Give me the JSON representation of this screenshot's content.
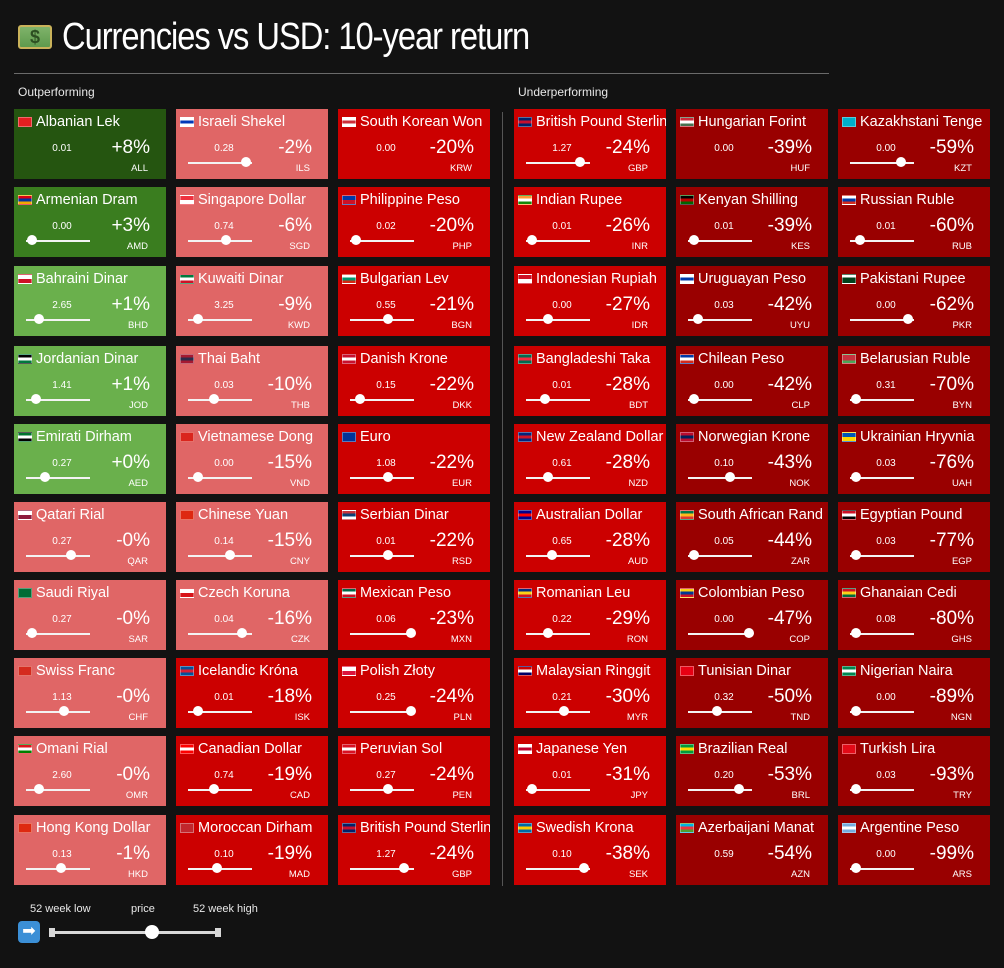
{
  "header": {
    "title": "Currencies vs USD: 10-year return",
    "icon": "money-banknote-icon",
    "icon_symbol": "$"
  },
  "sections": {
    "outperforming": "Outperforming",
    "underperforming": "Underperforming"
  },
  "colors": {
    "dark_green": "#255510",
    "mid_green": "#3a7d1f",
    "light_green": "#6ab04c",
    "salmon": "#e06666",
    "red": "#cc0000",
    "dark_red": "#990000"
  },
  "legend": {
    "low_label": "52 week low",
    "price_label": "price",
    "high_label": "52 week high",
    "icon": "right-arrow-icon",
    "icon_symbol": "➡",
    "position": 0.6
  },
  "currencies": [
    {
      "name": "Albanian Lek",
      "price": "0.01",
      "return": "+8%",
      "code": "ALL",
      "pos": -1,
      "color": "#255510",
      "flag": [
        "#e41e20",
        "#e41e20"
      ]
    },
    {
      "name": "Armenian Dram",
      "price": "0.00",
      "return": "+3%",
      "code": "AMD",
      "pos": 0.1,
      "color": "#3a7d1f",
      "flag": [
        "#d90012",
        "#0033a0",
        "#f2a800"
      ]
    },
    {
      "name": "Bahraini Dinar",
      "price": "2.65",
      "return": "+1%",
      "code": "BHD",
      "pos": 0.2,
      "color": "#6ab04c",
      "flag": [
        "#ffffff",
        "#ce1126"
      ]
    },
    {
      "name": "Jordanian Dinar",
      "price": "1.41",
      "return": "+1%",
      "code": "JOD",
      "pos": 0.15,
      "color": "#6ab04c",
      "flag": [
        "#000000",
        "#ffffff",
        "#007a3d"
      ]
    },
    {
      "name": "Emirati Dirham",
      "price": "0.27",
      "return": "+0%",
      "code": "AED",
      "pos": 0.3,
      "color": "#6ab04c",
      "flag": [
        "#00732f",
        "#ffffff",
        "#000000"
      ]
    },
    {
      "name": "Qatari Rial",
      "price": "0.27",
      "return": "-0%",
      "code": "QAR",
      "pos": 0.7,
      "color": "#e06666",
      "flag": [
        "#ffffff",
        "#8d1b3d"
      ]
    },
    {
      "name": "Saudi Riyal",
      "price": "0.27",
      "return": "-0%",
      "code": "SAR",
      "pos": 0.1,
      "color": "#e06666",
      "flag": [
        "#006c35",
        "#006c35"
      ]
    },
    {
      "name": "Swiss Franc",
      "price": "1.13",
      "return": "-0%",
      "code": "CHF",
      "pos": 0.6,
      "color": "#e06666",
      "flag": [
        "#d52b1e",
        "#d52b1e"
      ]
    },
    {
      "name": "Omani Rial",
      "price": "2.60",
      "return": "-0%",
      "code": "OMR",
      "pos": 0.2,
      "color": "#e06666",
      "flag": [
        "#db161b",
        "#ffffff",
        "#008000"
      ]
    },
    {
      "name": "Hong Kong Dollar",
      "price": "0.13",
      "return": "-1%",
      "code": "HKD",
      "pos": 0.55,
      "color": "#e06666",
      "flag": [
        "#de2910",
        "#de2910"
      ]
    },
    {
      "name": "Israeli Shekel",
      "price": "0.28",
      "return": "-2%",
      "code": "ILS",
      "pos": 0.9,
      "color": "#e06666",
      "flag": [
        "#ffffff",
        "#0038b8",
        "#ffffff"
      ]
    },
    {
      "name": "Singapore Dollar",
      "price": "0.74",
      "return": "-6%",
      "code": "SGD",
      "pos": 0.6,
      "color": "#e06666",
      "flag": [
        "#ef3340",
        "#ffffff"
      ]
    },
    {
      "name": "Kuwaiti Dinar",
      "price": "3.25",
      "return": "-9%",
      "code": "KWD",
      "pos": 0.15,
      "color": "#e06666",
      "flag": [
        "#007a3d",
        "#ffffff",
        "#ce1126"
      ]
    },
    {
      "name": "Thai Baht",
      "price": "0.03",
      "return": "-10%",
      "code": "THB",
      "pos": 0.4,
      "color": "#e06666",
      "flag": [
        "#a51931",
        "#2d2a4a",
        "#a51931"
      ]
    },
    {
      "name": "Vietnamese Dong",
      "price": "0.00",
      "return": "-15%",
      "code": "VND",
      "pos": 0.15,
      "color": "#e06666",
      "flag": [
        "#da251d",
        "#da251d"
      ]
    },
    {
      "name": "Chinese Yuan",
      "price": "0.14",
      "return": "-15%",
      "code": "CNY",
      "pos": 0.65,
      "color": "#e06666",
      "flag": [
        "#de2910",
        "#de2910"
      ]
    },
    {
      "name": "Czech Koruna",
      "price": "0.04",
      "return": "-16%",
      "code": "CZK",
      "pos": 0.85,
      "color": "#e06666",
      "flag": [
        "#ffffff",
        "#d7141a"
      ]
    },
    {
      "name": "Icelandic Króna",
      "price": "0.01",
      "return": "-18%",
      "code": "ISK",
      "pos": 0.15,
      "color": "#cc0000",
      "flag": [
        "#02529c",
        "#dc1e35",
        "#02529c"
      ]
    },
    {
      "name": "Canadian Dollar",
      "price": "0.74",
      "return": "-19%",
      "code": "CAD",
      "pos": 0.4,
      "color": "#cc0000",
      "flag": [
        "#ff0000",
        "#ffffff",
        "#ff0000"
      ]
    },
    {
      "name": "Moroccan Dirham",
      "price": "0.10",
      "return": "-19%",
      "code": "MAD",
      "pos": 0.45,
      "color": "#cc0000",
      "flag": [
        "#c1272d",
        "#c1272d"
      ]
    },
    {
      "name": "South Korean Won",
      "price": "0.00",
      "return": "-20%",
      "code": "KRW",
      "pos": -1,
      "color": "#cc0000",
      "flag": [
        "#ffffff",
        "#cd2e3a",
        "#ffffff"
      ]
    },
    {
      "name": "Philippine Peso",
      "price": "0.02",
      "return": "-20%",
      "code": "PHP",
      "pos": 0.1,
      "color": "#cc0000",
      "flag": [
        "#0038a8",
        "#ce1126"
      ]
    },
    {
      "name": "Bulgarian Lev",
      "price": "0.55",
      "return": "-21%",
      "code": "BGN",
      "pos": 0.6,
      "color": "#cc0000",
      "flag": [
        "#ffffff",
        "#00966e",
        "#d62612"
      ]
    },
    {
      "name": "Danish Krone",
      "price": "0.15",
      "return": "-22%",
      "code": "DKK",
      "pos": 0.15,
      "color": "#cc0000",
      "flag": [
        "#c8102e",
        "#ffffff",
        "#c8102e"
      ]
    },
    {
      "name": "Euro",
      "price": "1.08",
      "return": "-22%",
      "code": "EUR",
      "pos": 0.6,
      "color": "#cc0000",
      "flag": [
        "#003399",
        "#003399"
      ]
    },
    {
      "name": "Serbian Dinar",
      "price": "0.01",
      "return": "-22%",
      "code": "RSD",
      "pos": 0.6,
      "color": "#cc0000",
      "flag": [
        "#c6363c",
        "#0c4076",
        "#ffffff"
      ]
    },
    {
      "name": "Mexican Peso",
      "price": "0.06",
      "return": "-23%",
      "code": "MXN",
      "pos": 0.95,
      "color": "#cc0000",
      "flag": [
        "#006847",
        "#ffffff",
        "#ce1126"
      ]
    },
    {
      "name": "Polish Złoty",
      "price": "0.25",
      "return": "-24%",
      "code": "PLN",
      "pos": 0.95,
      "color": "#cc0000",
      "flag": [
        "#ffffff",
        "#dc143c"
      ]
    },
    {
      "name": "Peruvian Sol",
      "price": "0.27",
      "return": "-24%",
      "code": "PEN",
      "pos": 0.6,
      "color": "#cc0000",
      "flag": [
        "#d91023",
        "#ffffff",
        "#d91023"
      ]
    },
    {
      "name": "British Pound Sterling",
      "price": "1.27",
      "return": "-24%",
      "code": "GBP",
      "pos": 0.85,
      "color": "#cc0000",
      "flag": [
        "#012169",
        "#c8102e",
        "#012169"
      ]
    },
    {
      "name": "British Pound Sterling",
      "price": "1.27",
      "return": "-24%",
      "code": "GBP",
      "pos": 0.85,
      "color": "#cc0000",
      "flag": [
        "#012169",
        "#c8102e",
        "#012169"
      ]
    },
    {
      "name": "Indian Rupee",
      "price": "0.01",
      "return": "-26%",
      "code": "INR",
      "pos": 0.1,
      "color": "#cc0000",
      "flag": [
        "#ff9933",
        "#ffffff",
        "#138808"
      ]
    },
    {
      "name": "Indonesian Rupiah",
      "price": "0.00",
      "return": "-27%",
      "code": "IDR",
      "pos": 0.35,
      "color": "#cc0000",
      "flag": [
        "#ce1126",
        "#ffffff"
      ]
    },
    {
      "name": "Bangladeshi Taka",
      "price": "0.01",
      "return": "-28%",
      "code": "BDT",
      "pos": 0.3,
      "color": "#cc0000",
      "flag": [
        "#006a4e",
        "#f42a41",
        "#006a4e"
      ]
    },
    {
      "name": "New Zealand Dollar",
      "price": "0.61",
      "return": "-28%",
      "code": "NZD",
      "pos": 0.35,
      "color": "#cc0000",
      "flag": [
        "#00247d",
        "#cc142b",
        "#00247d"
      ]
    },
    {
      "name": "Australian Dollar",
      "price": "0.65",
      "return": "-28%",
      "code": "AUD",
      "pos": 0.4,
      "color": "#cc0000",
      "flag": [
        "#00008b",
        "#ff0000",
        "#00008b"
      ]
    },
    {
      "name": "Romanian Leu",
      "price": "0.22",
      "return": "-29%",
      "code": "RON",
      "pos": 0.35,
      "color": "#cc0000",
      "flag": [
        "#002b7f",
        "#fcd116",
        "#ce1126"
      ]
    },
    {
      "name": "Malaysian Ringgit",
      "price": "0.21",
      "return": "-30%",
      "code": "MYR",
      "pos": 0.6,
      "color": "#cc0000",
      "flag": [
        "#cc0001",
        "#ffffff",
        "#010066"
      ]
    },
    {
      "name": "Japanese Yen",
      "price": "0.01",
      "return": "-31%",
      "code": "JPY",
      "pos": 0.1,
      "color": "#cc0000",
      "flag": [
        "#ffffff",
        "#bc002d",
        "#ffffff"
      ]
    },
    {
      "name": "Swedish Krona",
      "price": "0.10",
      "return": "-38%",
      "code": "SEK",
      "pos": 0.9,
      "color": "#cc0000",
      "flag": [
        "#006aa7",
        "#fecc00",
        "#006aa7"
      ]
    },
    {
      "name": "Hungarian Forint",
      "price": "0.00",
      "return": "-39%",
      "code": "HUF",
      "pos": -1,
      "color": "#990000",
      "flag": [
        "#ce2939",
        "#ffffff",
        "#477050"
      ]
    },
    {
      "name": "Kenyan Shilling",
      "price": "0.01",
      "return": "-39%",
      "code": "KES",
      "pos": 0.1,
      "color": "#990000",
      "flag": [
        "#000000",
        "#bb0000",
        "#006600"
      ]
    },
    {
      "name": "Uruguayan Peso",
      "price": "0.03",
      "return": "-42%",
      "code": "UYU",
      "pos": 0.15,
      "color": "#990000",
      "flag": [
        "#ffffff",
        "#0038a8",
        "#ffffff"
      ]
    },
    {
      "name": "Chilean Peso",
      "price": "0.00",
      "return": "-42%",
      "code": "CLP",
      "pos": 0.1,
      "color": "#990000",
      "flag": [
        "#0039a6",
        "#ffffff",
        "#d52b1e"
      ]
    },
    {
      "name": "Norwegian Krone",
      "price": "0.10",
      "return": "-43%",
      "code": "NOK",
      "pos": 0.65,
      "color": "#990000",
      "flag": [
        "#ba0c2f",
        "#00205b",
        "#ba0c2f"
      ]
    },
    {
      "name": "South African Rand",
      "price": "0.05",
      "return": "-44%",
      "code": "ZAR",
      "pos": 0.1,
      "color": "#990000",
      "flag": [
        "#007749",
        "#ffb81c",
        "#de3831"
      ]
    },
    {
      "name": "Colombian Peso",
      "price": "0.00",
      "return": "-47%",
      "code": "COP",
      "pos": 0.95,
      "color": "#990000",
      "flag": [
        "#fcd116",
        "#003893",
        "#ce1126"
      ]
    },
    {
      "name": "Tunisian Dinar",
      "price": "0.32",
      "return": "-50%",
      "code": "TND",
      "pos": 0.45,
      "color": "#990000",
      "flag": [
        "#e70013",
        "#e70013"
      ]
    },
    {
      "name": "Brazilian Real",
      "price": "0.20",
      "return": "-53%",
      "code": "BRL",
      "pos": 0.8,
      "color": "#990000",
      "flag": [
        "#009c3b",
        "#ffdf00",
        "#009c3b"
      ]
    },
    {
      "name": "Azerbaijani Manat",
      "price": "0.59",
      "return": "-54%",
      "code": "AZN",
      "pos": -1,
      "color": "#990000",
      "flag": [
        "#00b5e2",
        "#ef3340",
        "#509e2f"
      ]
    },
    {
      "name": "Kazakhstani Tenge",
      "price": "0.00",
      "return": "-59%",
      "code": "KZT",
      "pos": 0.8,
      "color": "#990000",
      "flag": [
        "#00afca",
        "#00afca"
      ]
    },
    {
      "name": "Russian Ruble",
      "price": "0.01",
      "return": "-60%",
      "code": "RUB",
      "pos": 0.15,
      "color": "#990000",
      "flag": [
        "#ffffff",
        "#0039a6",
        "#d52b1e"
      ]
    },
    {
      "name": "Pakistani Rupee",
      "price": "0.00",
      "return": "-62%",
      "code": "PKR",
      "pos": 0.9,
      "color": "#990000",
      "flag": [
        "#ffffff",
        "#01411c",
        "#01411c"
      ]
    },
    {
      "name": "Belarusian Ruble",
      "price": "0.31",
      "return": "-70%",
      "code": "BYN",
      "pos": 0.1,
      "color": "#990000",
      "flag": [
        "#c8313e",
        "#c8313e",
        "#4aa657"
      ]
    },
    {
      "name": "Ukrainian Hryvnia",
      "price": "0.03",
      "return": "-76%",
      "code": "UAH",
      "pos": 0.1,
      "color": "#990000",
      "flag": [
        "#0057b7",
        "#ffd700"
      ]
    },
    {
      "name": "Egyptian Pound",
      "price": "0.03",
      "return": "-77%",
      "code": "EGP",
      "pos": 0.1,
      "color": "#990000",
      "flag": [
        "#ce1126",
        "#ffffff",
        "#000000"
      ]
    },
    {
      "name": "Ghanaian Cedi",
      "price": "0.08",
      "return": "-80%",
      "code": "GHS",
      "pos": 0.1,
      "color": "#990000",
      "flag": [
        "#ce1126",
        "#fcd116",
        "#006b3f"
      ]
    },
    {
      "name": "Nigerian Naira",
      "price": "0.00",
      "return": "-89%",
      "code": "NGN",
      "pos": 0.1,
      "color": "#990000",
      "flag": [
        "#008751",
        "#ffffff",
        "#008751"
      ]
    },
    {
      "name": "Turkish Lira",
      "price": "0.03",
      "return": "-93%",
      "code": "TRY",
      "pos": 0.1,
      "color": "#990000",
      "flag": [
        "#e30a17",
        "#e30a17"
      ]
    },
    {
      "name": "Argentine Peso",
      "price": "0.00",
      "return": "-99%",
      "code": "ARS",
      "pos": 0.1,
      "color": "#990000",
      "flag": [
        "#74acdf",
        "#ffffff",
        "#74acdf"
      ]
    }
  ]
}
